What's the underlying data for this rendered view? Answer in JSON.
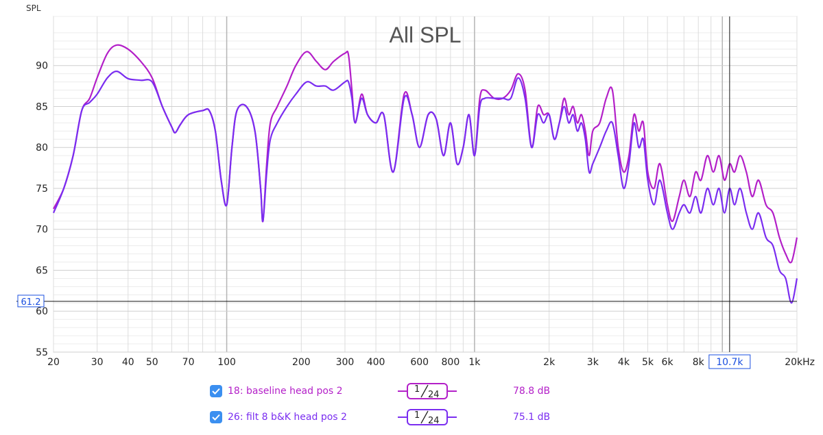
{
  "chart_data": {
    "type": "line",
    "title": "All SPL",
    "ylabel": "SPL",
    "xlabel": "",
    "x_scale": "log",
    "xlim": [
      20,
      20000
    ],
    "ylim": [
      55,
      96
    ],
    "grid": true,
    "x_tick_values": [
      20,
      30,
      40,
      50,
      70,
      100,
      200,
      300,
      400,
      600,
      800,
      1000,
      2000,
      3000,
      4000,
      5000,
      6000,
      8000,
      20000
    ],
    "x_tick_labels": [
      "20",
      "30",
      "40",
      "50",
      "70",
      "100",
      "200",
      "300",
      "400",
      "600",
      "800",
      "1k",
      "2k",
      "3k",
      "4k",
      "5k",
      "6k",
      "8k",
      "20kHz"
    ],
    "y_tick_values": [
      55,
      60,
      65,
      70,
      75,
      80,
      85,
      90
    ],
    "y_tick_labels": [
      "55",
      "60",
      "65",
      "70",
      "75",
      "80",
      "85",
      "90"
    ],
    "cursor": {
      "x": 10700,
      "y": 61.2,
      "x_label": "10.7k",
      "y_label": "61.2"
    },
    "series": [
      {
        "name": "18: baseline head pos 2",
        "color": "#b31fc8",
        "smoothing": "1/24",
        "average": "78.8 dB",
        "points": [
          [
            20,
            72.5
          ],
          [
            22,
            75
          ],
          [
            24,
            79
          ],
          [
            26,
            84.5
          ],
          [
            28,
            86
          ],
          [
            30,
            88.5
          ],
          [
            33,
            91.5
          ],
          [
            36,
            92.5
          ],
          [
            40,
            92
          ],
          [
            45,
            90.5
          ],
          [
            50,
            88.5
          ],
          [
            55,
            85
          ],
          [
            60,
            82.5
          ],
          [
            62,
            81.8
          ],
          [
            65,
            82.8
          ],
          [
            70,
            84
          ],
          [
            80,
            84.5
          ],
          [
            85,
            84.5
          ],
          [
            90,
            82
          ],
          [
            95,
            76
          ],
          [
            100,
            73
          ],
          [
            105,
            80
          ],
          [
            110,
            84.5
          ],
          [
            120,
            85
          ],
          [
            130,
            82
          ],
          [
            137,
            75
          ],
          [
            140,
            71
          ],
          [
            145,
            78
          ],
          [
            150,
            83
          ],
          [
            160,
            85
          ],
          [
            175,
            87.5
          ],
          [
            190,
            90
          ],
          [
            210,
            91.7
          ],
          [
            230,
            90.5
          ],
          [
            250,
            89.5
          ],
          [
            270,
            90.5
          ],
          [
            300,
            91.5
          ],
          [
            310,
            91.3
          ],
          [
            320,
            87
          ],
          [
            330,
            83
          ],
          [
            350,
            86.5
          ],
          [
            370,
            84
          ],
          [
            400,
            83
          ],
          [
            430,
            84
          ],
          [
            470,
            77
          ],
          [
            520,
            86.5
          ],
          [
            560,
            84
          ],
          [
            600,
            80
          ],
          [
            650,
            84
          ],
          [
            700,
            83.5
          ],
          [
            750,
            79
          ],
          [
            800,
            83
          ],
          [
            850,
            78
          ],
          [
            900,
            80
          ],
          [
            950,
            84
          ],
          [
            1000,
            79
          ],
          [
            1050,
            86
          ],
          [
            1100,
            87
          ],
          [
            1200,
            86
          ],
          [
            1300,
            86
          ],
          [
            1400,
            87
          ],
          [
            1500,
            89
          ],
          [
            1600,
            87
          ],
          [
            1700,
            80
          ],
          [
            1800,
            85
          ],
          [
            1900,
            84
          ],
          [
            2000,
            84
          ],
          [
            2100,
            81
          ],
          [
            2200,
            83
          ],
          [
            2300,
            86
          ],
          [
            2400,
            84
          ],
          [
            2500,
            85
          ],
          [
            2600,
            83
          ],
          [
            2700,
            84
          ],
          [
            2800,
            82
          ],
          [
            2900,
            79
          ],
          [
            3000,
            82
          ],
          [
            3200,
            83
          ],
          [
            3400,
            86
          ],
          [
            3600,
            87
          ],
          [
            3800,
            80
          ],
          [
            4000,
            77
          ],
          [
            4200,
            79
          ],
          [
            4400,
            84
          ],
          [
            4600,
            82
          ],
          [
            4800,
            83
          ],
          [
            5000,
            77
          ],
          [
            5300,
            75
          ],
          [
            5600,
            78
          ],
          [
            6000,
            73
          ],
          [
            6300,
            71
          ],
          [
            6700,
            74
          ],
          [
            7000,
            76
          ],
          [
            7400,
            74
          ],
          [
            7800,
            77
          ],
          [
            8200,
            76
          ],
          [
            8700,
            79
          ],
          [
            9200,
            77
          ],
          [
            9700,
            79
          ],
          [
            10200,
            76
          ],
          [
            10700,
            78
          ],
          [
            11200,
            77
          ],
          [
            11800,
            79
          ],
          [
            12500,
            77
          ],
          [
            13200,
            74
          ],
          [
            14000,
            76
          ],
          [
            15000,
            73
          ],
          [
            16000,
            72
          ],
          [
            17000,
            69
          ],
          [
            18000,
            67
          ],
          [
            19000,
            66
          ],
          [
            20000,
            69
          ]
        ]
      },
      {
        "name": "26: filt 8 b&K head pos 2",
        "color": "#7a2df0",
        "smoothing": "1/24",
        "average": "75.1 dB",
        "points": [
          [
            20,
            72
          ],
          [
            22,
            75
          ],
          [
            24,
            79
          ],
          [
            26,
            84.5
          ],
          [
            28,
            85.5
          ],
          [
            30,
            86.5
          ],
          [
            33,
            88.5
          ],
          [
            36,
            89.3
          ],
          [
            40,
            88.4
          ],
          [
            45,
            88.2
          ],
          [
            50,
            88
          ],
          [
            55,
            85
          ],
          [
            60,
            82.5
          ],
          [
            62,
            81.8
          ],
          [
            65,
            82.8
          ],
          [
            70,
            84
          ],
          [
            80,
            84.5
          ],
          [
            85,
            84.5
          ],
          [
            90,
            82
          ],
          [
            95,
            76
          ],
          [
            100,
            73
          ],
          [
            105,
            80
          ],
          [
            110,
            84.5
          ],
          [
            120,
            85
          ],
          [
            130,
            82
          ],
          [
            137,
            75
          ],
          [
            140,
            71
          ],
          [
            145,
            77
          ],
          [
            150,
            81
          ],
          [
            160,
            83
          ],
          [
            175,
            85
          ],
          [
            190,
            86.5
          ],
          [
            210,
            88
          ],
          [
            230,
            87.5
          ],
          [
            250,
            87.5
          ],
          [
            270,
            87
          ],
          [
            300,
            88
          ],
          [
            310,
            88
          ],
          [
            320,
            86
          ],
          [
            330,
            83
          ],
          [
            350,
            86
          ],
          [
            370,
            84
          ],
          [
            400,
            83
          ],
          [
            430,
            84
          ],
          [
            470,
            77
          ],
          [
            520,
            86
          ],
          [
            560,
            84
          ],
          [
            600,
            80
          ],
          [
            650,
            84
          ],
          [
            700,
            83.5
          ],
          [
            750,
            79
          ],
          [
            800,
            83
          ],
          [
            850,
            78
          ],
          [
            900,
            80
          ],
          [
            950,
            84
          ],
          [
            1000,
            79
          ],
          [
            1050,
            85
          ],
          [
            1100,
            86
          ],
          [
            1200,
            86
          ],
          [
            1300,
            86
          ],
          [
            1400,
            86
          ],
          [
            1500,
            88.5
          ],
          [
            1600,
            86
          ],
          [
            1700,
            80
          ],
          [
            1800,
            84
          ],
          [
            1900,
            83
          ],
          [
            2000,
            84
          ],
          [
            2100,
            81
          ],
          [
            2200,
            83
          ],
          [
            2300,
            85
          ],
          [
            2400,
            83
          ],
          [
            2500,
            84
          ],
          [
            2600,
            82
          ],
          [
            2700,
            83
          ],
          [
            2800,
            81
          ],
          [
            2900,
            77
          ],
          [
            3000,
            78
          ],
          [
            3200,
            80
          ],
          [
            3400,
            82
          ],
          [
            3600,
            83
          ],
          [
            3800,
            79
          ],
          [
            4000,
            75
          ],
          [
            4200,
            78
          ],
          [
            4400,
            83
          ],
          [
            4600,
            80
          ],
          [
            4800,
            81
          ],
          [
            5000,
            76
          ],
          [
            5300,
            73
          ],
          [
            5600,
            76
          ],
          [
            6000,
            72
          ],
          [
            6300,
            70
          ],
          [
            6700,
            72
          ],
          [
            7000,
            73
          ],
          [
            7400,
            72
          ],
          [
            7800,
            74
          ],
          [
            8200,
            72
          ],
          [
            8700,
            75
          ],
          [
            9200,
            73
          ],
          [
            9700,
            75
          ],
          [
            10200,
            72
          ],
          [
            10700,
            75
          ],
          [
            11200,
            73
          ],
          [
            11800,
            75
          ],
          [
            12500,
            72
          ],
          [
            13200,
            70
          ],
          [
            14000,
            72
          ],
          [
            15000,
            69
          ],
          [
            16000,
            68
          ],
          [
            17000,
            65
          ],
          [
            18000,
            64
          ],
          [
            19000,
            61
          ],
          [
            20000,
            64
          ]
        ]
      }
    ]
  }
}
